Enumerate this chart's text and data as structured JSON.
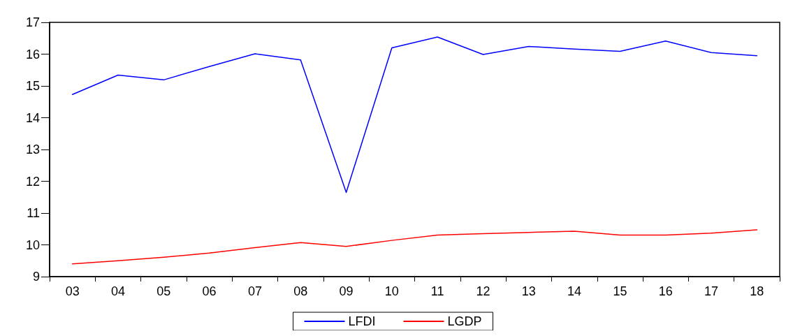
{
  "chart_data": {
    "type": "line",
    "categories": [
      "03",
      "04",
      "05",
      "06",
      "07",
      "08",
      "09",
      "10",
      "11",
      "12",
      "13",
      "14",
      "15",
      "16",
      "17",
      "18"
    ],
    "series": [
      {
        "name": "LFDI",
        "color": "#0000ff",
        "values": [
          14.73,
          15.34,
          15.19,
          15.61,
          16.01,
          15.82,
          11.65,
          16.2,
          16.54,
          15.99,
          16.24,
          16.16,
          16.09,
          16.41,
          16.05,
          15.95
        ]
      },
      {
        "name": "LGDP",
        "color": "#ff0000",
        "values": [
          9.4,
          9.5,
          9.61,
          9.74,
          9.91,
          10.07,
          9.95,
          10.14,
          10.31,
          10.35,
          10.39,
          10.43,
          10.31,
          10.31,
          10.37,
          10.47
        ]
      }
    ],
    "ylim": [
      9,
      17
    ],
    "yticks": [
      9,
      10,
      11,
      12,
      13,
      14,
      15,
      16,
      17
    ],
    "grid": false,
    "legend": "bottom",
    "marker": "none",
    "line_style": "solid"
  }
}
